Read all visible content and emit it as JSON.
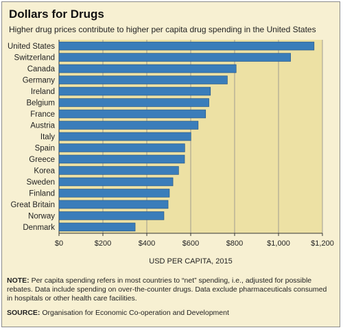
{
  "title": "Dollars for Drugs",
  "subtitle": "Higher drug prices contribute to higher per capita drug spending in the United States",
  "note_label": "NOTE:",
  "note_text": " Per capita spending refers in most countries to “net” spending, i.e., adjusted for possible rebates. Data include spending on over-the-counter drugs. Data exclude pharmaceuticals consumed in hospitals or other health care facilities.",
  "source_label": "SOURCE:",
  "source_text": " Organisation for Economic Co-operation and Development",
  "colors": {
    "bar": "#3a7dba",
    "plot_bg": "#ede1a4",
    "frame_bg": "#f7f0d2",
    "grid": "#8a8a8a"
  },
  "chart_data": {
    "type": "bar",
    "orientation": "horizontal",
    "categories": [
      "United States",
      "Switzerland",
      "Canada",
      "Germany",
      "Ireland",
      "Belgium",
      "France",
      "Austria",
      "Italy",
      "Spain",
      "Greece",
      "Korea",
      "Sweden",
      "Finland",
      "Great Britain",
      "Norway",
      "Denmark"
    ],
    "values": [
      1162,
      1055,
      807,
      767,
      690,
      683,
      668,
      634,
      601,
      573,
      572,
      545,
      519,
      503,
      497,
      478,
      347
    ],
    "xlabel": "USD PER CAPITA, 2015",
    "xlim": [
      0,
      1200
    ],
    "xticks": [
      0,
      200,
      400,
      600,
      800,
      1000,
      1200
    ],
    "xtick_labels": [
      "$0",
      "$200",
      "$400",
      "$600",
      "$800",
      "$1,000",
      "$1,200"
    ],
    "grid": true
  }
}
